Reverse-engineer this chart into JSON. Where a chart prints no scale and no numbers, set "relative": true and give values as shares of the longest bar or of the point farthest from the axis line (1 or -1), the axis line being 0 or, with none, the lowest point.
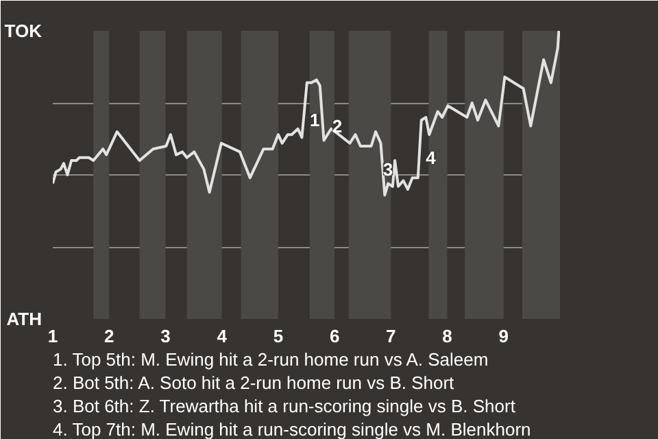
{
  "chart_data": {
    "type": "line",
    "color": "#e2e2e2",
    "relative": true,
    "x": [
      1.0,
      1.055,
      1.14,
      1.195,
      1.26,
      1.33,
      1.42,
      1.47,
      1.64,
      1.72,
      1.89,
      1.95,
      2.0,
      2.14,
      2.54,
      2.78,
      3.01,
      3.09,
      3.19,
      3.3,
      3.38,
      3.51,
      3.68,
      3.78,
      3.99,
      4.32,
      4.5,
      4.74,
      4.9,
      5.0,
      5.07,
      5.17,
      5.24,
      5.35,
      5.42,
      5.51,
      5.59,
      5.68,
      5.74,
      5.81,
      5.94,
      6.01,
      6.27,
      6.37,
      6.46,
      6.65,
      6.73,
      6.82,
      6.89,
      6.95,
      7.03,
      7.07,
      7.13,
      7.22,
      7.3,
      7.38,
      7.48,
      7.54,
      7.62,
      7.68,
      7.83,
      7.91,
      8.01,
      8.35,
      8.44,
      8.54,
      8.68,
      8.91,
      9.02,
      9.35,
      9.48,
      9.71,
      9.84,
      9.96,
      9.98
    ],
    "values": [
      0.47,
      0.51,
      0.52,
      0.54,
      0.5,
      0.55,
      0.55,
      0.56,
      0.56,
      0.55,
      0.59,
      0.57,
      0.59,
      0.65,
      0.55,
      0.59,
      0.6,
      0.64,
      0.57,
      0.58,
      0.56,
      0.58,
      0.52,
      0.44,
      0.61,
      0.58,
      0.49,
      0.59,
      0.59,
      0.64,
      0.61,
      0.64,
      0.64,
      0.66,
      0.63,
      0.82,
      0.82,
      0.83,
      0.81,
      0.62,
      0.66,
      0.65,
      0.61,
      0.64,
      0.6,
      0.6,
      0.65,
      0.61,
      0.43,
      0.47,
      0.46,
      0.55,
      0.46,
      0.48,
      0.45,
      0.49,
      0.49,
      0.69,
      0.7,
      0.64,
      0.72,
      0.7,
      0.74,
      0.7,
      0.75,
      0.69,
      0.76,
      0.67,
      0.84,
      0.8,
      0.67,
      0.9,
      0.82,
      0.94,
      1.0
    ],
    "xlim": [
      1,
      10
    ],
    "xticks": [
      1,
      2,
      3,
      4,
      5,
      6,
      7,
      8,
      9
    ],
    "grid": "y",
    "bands": [
      {
        "axis": "x",
        "from": 1.72,
        "to": 2,
        "color": "#4b4946"
      },
      {
        "axis": "x",
        "from": 2.54,
        "to": 3,
        "color": "#4b4946"
      },
      {
        "axis": "x",
        "from": 3.38,
        "to": 4,
        "color": "#4b4946"
      },
      {
        "axis": "x",
        "from": 4.34,
        "to": 5,
        "color": "#4b4946"
      },
      {
        "axis": "x",
        "from": 5.56,
        "to": 6,
        "color": "#4b4946"
      },
      {
        "axis": "x",
        "from": 6.25,
        "to": 7,
        "color": "#4b4946"
      },
      {
        "axis": "x",
        "from": 7.67,
        "to": 8,
        "color": "#4b4946"
      },
      {
        "axis": "x",
        "from": 8.31,
        "to": 9,
        "color": "#4b4946"
      },
      {
        "axis": "x",
        "from": 9.33,
        "to": 10,
        "color": "#4b4946"
      }
    ],
    "annotations": [
      "TOK",
      "ATH",
      {
        "text": "1",
        "x": 5.56,
        "y": 0.69
      },
      {
        "text": "2",
        "x": 5.96,
        "y": 0.67
      },
      {
        "text": "3",
        "x": 6.86,
        "y": 0.52
      },
      {
        "text": "4",
        "x": 7.62,
        "y": 0.56
      },
      "1. Top 5th: M. Ewing hit a 2-run home run vs A. Saleem",
      "2. Bot 5th: A. Soto hit a 2-run home run vs B. Short",
      "3. Bot 6th: Z. Trewartha hit a run-scoring single vs B. Short",
      "4. Top 7th: M. Ewing hit a run-scoring single vs M. Blenkhorn"
    ]
  }
}
